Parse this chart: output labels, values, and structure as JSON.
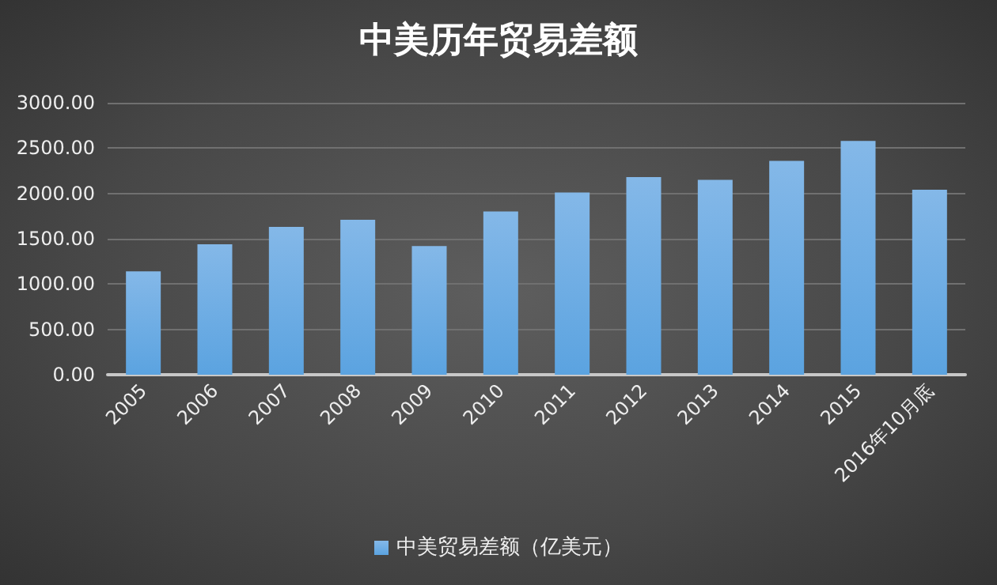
{
  "chart_data": {
    "type": "bar",
    "title": "中美历年贸易差额",
    "categories": [
      "2005",
      "2006",
      "2007",
      "2008",
      "2009",
      "2010",
      "2011",
      "2012",
      "2013",
      "2014",
      "2015",
      "2016年10月底"
    ],
    "series": [
      {
        "name": "中美贸易差额（亿美元）",
        "color": "#5ba3e0",
        "values": [
          1140,
          1440,
          1630,
          1710,
          1420,
          1800,
          2010,
          2180,
          2150,
          2360,
          2580,
          2040
        ]
      }
    ],
    "ylim": [
      0,
      3000
    ],
    "yticks": [
      {
        "value": 0,
        "label": "0.00"
      },
      {
        "value": 500,
        "label": "500.00"
      },
      {
        "value": 1000,
        "label": "1000.00"
      },
      {
        "value": 1500,
        "label": "1500.00"
      },
      {
        "value": 2000,
        "label": "2000.00"
      },
      {
        "value": 2500,
        "label": "2500.00"
      },
      {
        "value": 3000,
        "label": "3000.00"
      }
    ],
    "grid": "y",
    "legend": "bottom"
  }
}
